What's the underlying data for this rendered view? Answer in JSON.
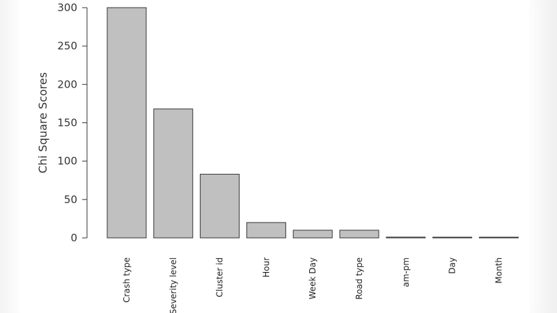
{
  "chart_data": {
    "type": "bar",
    "title": "",
    "xlabel": "",
    "ylabel": "Chi Square Scores",
    "ylim": [
      0,
      300
    ],
    "yticks": [
      0,
      50,
      100,
      150,
      200,
      250,
      300
    ],
    "categories": [
      "Crash type",
      "Severity level",
      "Cluster id",
      "Hour",
      "Week Day",
      "Road type",
      "am-pm",
      "Day",
      "Month"
    ],
    "values": [
      300,
      168,
      83,
      20,
      10,
      10,
      1,
      0.3,
      0.2
    ],
    "bar_color": "#c0c0c0",
    "bar_stroke": "#333333",
    "grid": false
  }
}
